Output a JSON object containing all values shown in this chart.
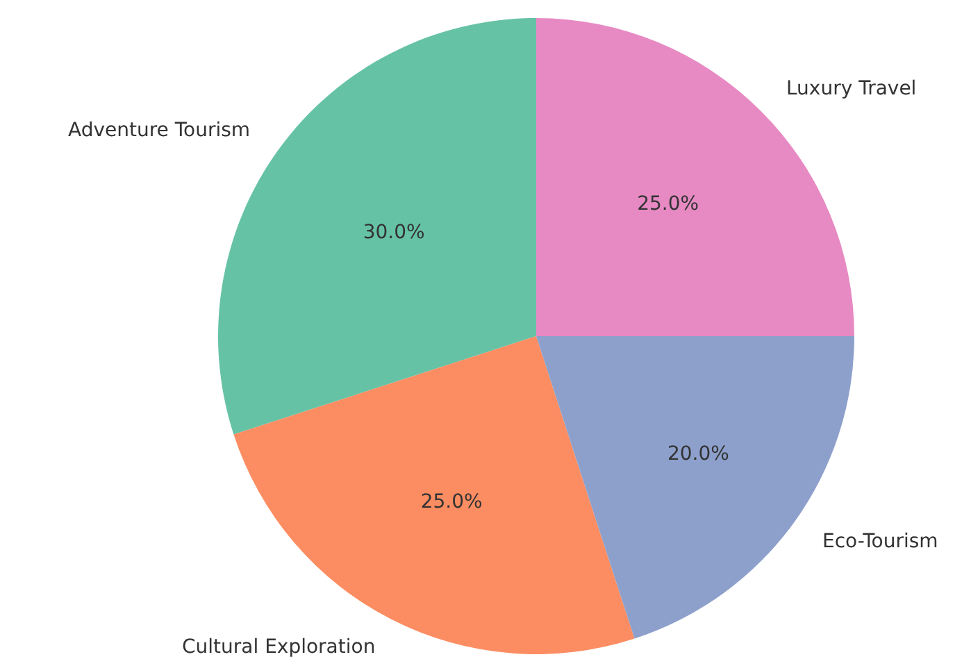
{
  "chart_data": {
    "type": "pie",
    "categories": [
      "Adventure Tourism",
      "Cultural Exploration",
      "Eco-Tourism",
      "Luxury Travel"
    ],
    "values": [
      30,
      25,
      20,
      25
    ],
    "value_labels": [
      "30.0%",
      "25.0%",
      "20.0%",
      "25.0%"
    ],
    "colors": [
      "#66c2a5",
      "#fc8d62",
      "#8da0cb",
      "#e78ac3"
    ],
    "legend": false
  }
}
